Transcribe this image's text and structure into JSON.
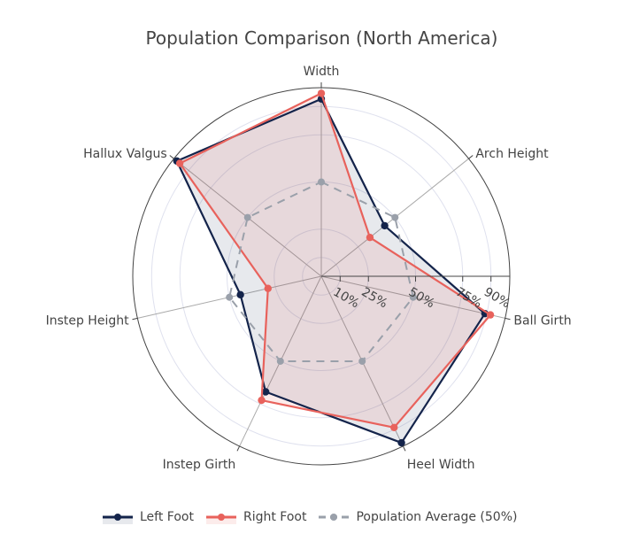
{
  "chart_data": {
    "type": "radar",
    "title": "Population Comparison (North America)",
    "categories": [
      "Width",
      "Arch Height",
      "Ball Girth",
      "Heel Width",
      "Instep Girth",
      "Instep Height",
      "Hallux Valgus"
    ],
    "radial_axis": {
      "range": [
        0,
        100
      ],
      "tickvals": [
        10,
        25,
        50,
        75,
        90
      ],
      "ticktext": [
        "10%",
        "25%",
        "50%",
        "75%",
        "90%"
      ],
      "angle": 0
    },
    "series": [
      {
        "name": "Left Foot",
        "values": [
          94,
          43,
          89,
          98,
          68,
          44,
          98
        ],
        "color": "#14244b",
        "fill": "rgba(20,36,75,0.10)",
        "dash": "solid"
      },
      {
        "name": "Right Foot",
        "values": [
          97,
          33,
          92,
          89,
          73,
          29,
          96
        ],
        "color": "#e8625c",
        "fill": "rgba(232,98,92,0.12)",
        "dash": "solid"
      },
      {
        "name": "Population Average (50%)",
        "values": [
          50,
          50,
          50,
          50,
          50,
          50,
          50
        ],
        "color": "#9aa0aa",
        "fill": "none",
        "dash": "dashed"
      }
    ],
    "legend_position": "bottom",
    "grid": true
  }
}
